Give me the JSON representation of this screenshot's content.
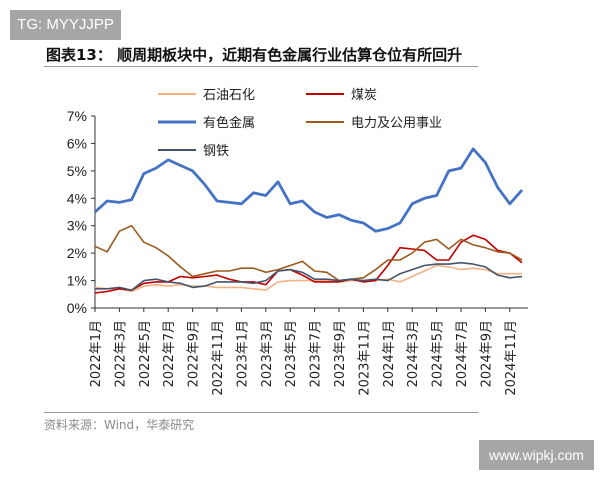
{
  "watermark_top": "TG: MYYJJPP",
  "watermark_bottom": "www.wipkj.com",
  "title": "图表13：  顺周期板块中，近期有色金属行业估算仓位有所回升",
  "source": "资料来源：Wind，华泰研究",
  "chart_data": {
    "type": "line",
    "title": "",
    "xlabel": "",
    "ylabel": "",
    "ylim": [
      0,
      7
    ],
    "yticks": [
      "0%",
      "1%",
      "2%",
      "3%",
      "4%",
      "5%",
      "6%",
      "7%"
    ],
    "grid": false,
    "legend_placement": "top",
    "xtick_labels": [
      "2022年1月",
      "2022年3月",
      "2022年5月",
      "2022年7月",
      "2022年9月",
      "2022年11月",
      "2023年1月",
      "2023年3月",
      "2023年5月",
      "2023年7月",
      "2023年9月",
      "2023年11月",
      "2024年1月",
      "2024年3月",
      "2024年5月",
      "2024年7月",
      "2024年9月",
      "2024年11月"
    ],
    "x": [
      "2022-01",
      "2022-02",
      "2022-03",
      "2022-04",
      "2022-05",
      "2022-06",
      "2022-07",
      "2022-08",
      "2022-09",
      "2022-10",
      "2022-11",
      "2022-12",
      "2023-01",
      "2023-02",
      "2023-03",
      "2023-04",
      "2023-05",
      "2023-06",
      "2023-07",
      "2023-08",
      "2023-09",
      "2023-10",
      "2023-11",
      "2023-12",
      "2024-01",
      "2024-02",
      "2024-03",
      "2024-04",
      "2024-05",
      "2024-06",
      "2024-07",
      "2024-08",
      "2024-09",
      "2024-10",
      "2024-11",
      "2024-12"
    ],
    "series": [
      {
        "name": "石油石化",
        "color": "#f4b183",
        "values": [
          0.75,
          0.7,
          0.7,
          0.6,
          0.8,
          0.85,
          0.8,
          0.85,
          0.8,
          0.8,
          0.75,
          0.75,
          0.75,
          0.7,
          0.65,
          0.95,
          1.0,
          1.0,
          1.0,
          1.0,
          0.95,
          1.0,
          1.0,
          1.0,
          1.05,
          0.95,
          1.15,
          1.35,
          1.55,
          1.5,
          1.4,
          1.45,
          1.4,
          1.25,
          1.25,
          1.25
        ]
      },
      {
        "name": "煤炭",
        "color": "#c00000",
        "values": [
          0.55,
          0.6,
          0.7,
          0.65,
          0.9,
          0.95,
          0.95,
          1.15,
          1.1,
          1.15,
          1.2,
          1.05,
          0.95,
          0.95,
          0.85,
          1.35,
          1.4,
          1.2,
          0.95,
          0.95,
          0.95,
          1.05,
          0.95,
          1.0,
          1.55,
          2.2,
          2.15,
          2.1,
          1.75,
          1.75,
          2.4,
          2.65,
          2.5,
          2.1,
          2.0,
          1.65
        ]
      },
      {
        "name": "有色金属",
        "color": "#4472c4",
        "values": [
          3.5,
          3.9,
          3.85,
          3.95,
          4.9,
          5.1,
          5.4,
          5.2,
          5.0,
          4.5,
          3.9,
          3.85,
          3.8,
          4.2,
          4.1,
          4.6,
          3.8,
          3.9,
          3.5,
          3.3,
          3.4,
          3.2,
          3.1,
          2.8,
          2.9,
          3.1,
          3.8,
          4.0,
          4.1,
          5.0,
          5.1,
          5.8,
          5.3,
          4.4,
          3.8,
          4.3
        ]
      },
      {
        "name": "电力及公用事业",
        "color": "#9c5a1e",
        "values": [
          2.25,
          2.05,
          2.8,
          3.0,
          2.4,
          2.2,
          1.9,
          1.5,
          1.15,
          1.25,
          1.35,
          1.35,
          1.45,
          1.45,
          1.3,
          1.4,
          1.55,
          1.7,
          1.35,
          1.3,
          1.0,
          1.05,
          1.1,
          1.4,
          1.75,
          1.75,
          2.0,
          2.4,
          2.5,
          2.15,
          2.5,
          2.3,
          2.2,
          2.05,
          2.0,
          1.75
        ]
      },
      {
        "name": "钢铁",
        "color": "#44546a",
        "values": [
          0.7,
          0.7,
          0.75,
          0.65,
          1.0,
          1.05,
          0.95,
          0.9,
          0.75,
          0.8,
          0.95,
          0.95,
          0.95,
          0.9,
          1.0,
          1.35,
          1.4,
          1.3,
          1.05,
          1.05,
          1.0,
          1.05,
          1.0,
          1.05,
          1.0,
          1.25,
          1.4,
          1.55,
          1.6,
          1.6,
          1.65,
          1.6,
          1.5,
          1.2,
          1.1,
          1.15
        ]
      }
    ]
  }
}
